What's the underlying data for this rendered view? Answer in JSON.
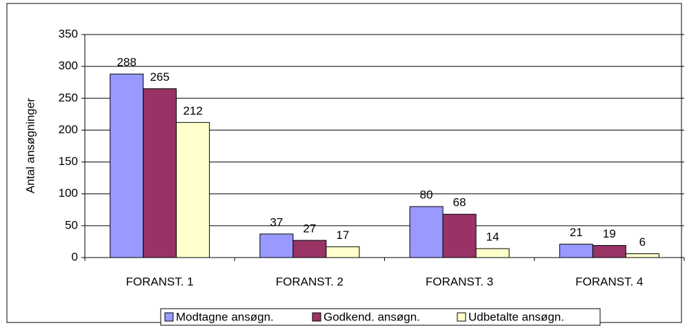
{
  "chart_data": {
    "type": "bar",
    "y_label": "Antal ansøgninger",
    "categories": [
      "FORANST. 1",
      "FORANST. 2",
      "FORANST. 3",
      "FORANST. 4"
    ],
    "series": [
      {
        "name": "Modtagne ansøgn.",
        "color": "#9999ff",
        "values": [
          288,
          37,
          80,
          21
        ]
      },
      {
        "name": "Godkend. ansøgn.",
        "color": "#993366",
        "values": [
          265,
          27,
          68,
          19
        ]
      },
      {
        "name": "Udbetalte ansøgn.",
        "color": "#ffffcc",
        "values": [
          212,
          17,
          14,
          6
        ]
      }
    ],
    "ylim": [
      0,
      350
    ],
    "yticks": [
      0,
      50,
      100,
      150,
      200,
      250,
      300,
      350
    ],
    "grid": true,
    "legend": "bottom"
  }
}
